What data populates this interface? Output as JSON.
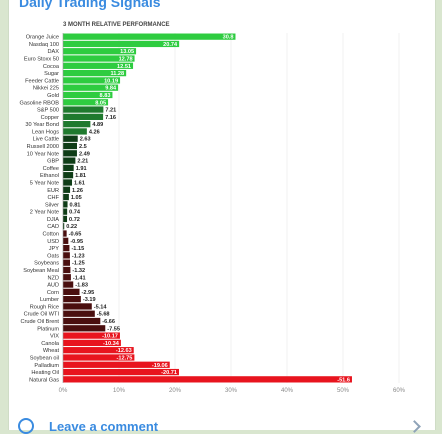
{
  "page": {
    "title": "Daily Trading Signals",
    "comment_label": "Leave a comment"
  },
  "colors": {
    "positive_strong": "#2ecc40",
    "positive_mid": "#1f7a2e",
    "positive_dark": "#0f3d17",
    "negative_dark": "#4a0f0f",
    "negative_strong": "#e8141e",
    "grid": "#e6e6e6",
    "accent": "#3a8be0"
  },
  "chart_data": {
    "type": "bar",
    "orientation": "horizontal",
    "title": "3 MONTH RELATIVE PERFORMANCE",
    "xlabel": "",
    "ylabel": "",
    "xlim": [
      0,
      60
    ],
    "x_ticks": [
      "0%",
      "10%",
      "20%",
      "30%",
      "40%",
      "50%",
      "60%"
    ],
    "grid": true,
    "categories": [
      "Orange Juice",
      "Nasdaq 100",
      "DAX",
      "Euro Stoxx 50",
      "Cocoa",
      "Sugar",
      "Feeder Cattle",
      "Nikkei 225",
      "Gold",
      "Gasoline RBOB",
      "S&P 500",
      "Copper",
      "30 Year Bond",
      "Lean Hogs",
      "Live Cattle",
      "Russell 2000",
      "10 Year Note",
      "GBP",
      "Coffee",
      "Ethanol",
      "5 Year Note",
      "EUR",
      "CHF",
      "Silver",
      "2 Year Note",
      "DJIA",
      "CAD",
      "Cotton",
      "USD",
      "JPY",
      "Oats",
      "Soybeans",
      "Soybean Meal",
      "NZD",
      "AUD",
      "Corn",
      "Lumber",
      "Rough Rice",
      "Crude Oil WTI",
      "Crude Oil Brent",
      "Platinum",
      "VIX",
      "Canola",
      "Wheat",
      "Soybean oil",
      "Palladium",
      "Heating Oil",
      "Natural Gas"
    ],
    "values": [
      30.8,
      20.74,
      13.05,
      12.78,
      12.51,
      11.28,
      10.19,
      9.84,
      8.83,
      8.05,
      7.21,
      7.16,
      4.89,
      4.26,
      2.63,
      2.5,
      2.49,
      2.21,
      1.91,
      1.81,
      1.61,
      1.26,
      1.05,
      0.81,
      0.74,
      0.72,
      0.22,
      -0.65,
      -0.95,
      -1.15,
      -1.23,
      -1.25,
      -1.32,
      -1.41,
      -1.83,
      -2.95,
      -3.19,
      -5.14,
      -5.68,
      -6.66,
      -7.55,
      -10.17,
      -10.34,
      -12.63,
      -12.75,
      -19.06,
      -20.71,
      -51.6
    ],
    "value_labels": [
      "30.8",
      "20.74",
      "13.05",
      "12.78",
      "12.51",
      "11.28",
      "10.19",
      "9.84",
      "8.83",
      "8.05",
      "7.21",
      "7.16",
      "4.89",
      "4.26",
      "2.63",
      "2.5",
      "2.49",
      "2.21",
      "1.91",
      "1.81",
      "1.61",
      "1.26",
      "1.05",
      "0.81",
      "0.74",
      "0.72",
      "0.22",
      "-0.65",
      "-0.95",
      "-1.15",
      "-1.23",
      "-1.25",
      "-1.32",
      "-1.41",
      "-1.83",
      "-2.95",
      "-3.19",
      "-5.14",
      "-5.68",
      "-6.66",
      "-7.55",
      "-10.17",
      "-10.34",
      "-12.63",
      "-12.75",
      "-19.06",
      "-20.71",
      "-51.6"
    ]
  }
}
